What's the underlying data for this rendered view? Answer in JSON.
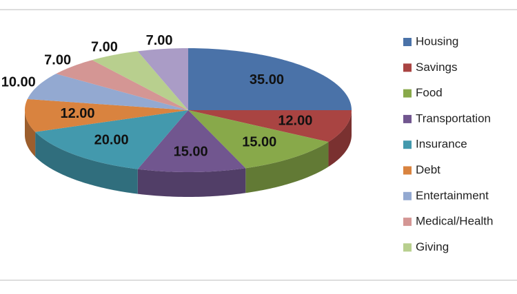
{
  "chart_data": {
    "type": "pie",
    "categories": [
      "Housing",
      "Savings",
      "Food",
      "Transportation",
      "Insurance",
      "Debt",
      "Entertainment",
      "Medical/Health",
      "Giving",
      null
    ],
    "values": [
      35,
      12,
      15,
      15,
      20,
      12,
      10,
      7,
      7,
      7
    ],
    "value_labels": [
      "35.00",
      "12.00",
      "15.00",
      "15.00",
      "20.00",
      "12.00",
      "10.00",
      "7.00",
      "7.00",
      "7.00"
    ],
    "colors": [
      "#4a72a8",
      "#a94442",
      "#88a94a",
      "#71568f",
      "#4399ad",
      "#d9833f",
      "#93a9d1",
      "#d49694",
      "#b8cf8e",
      "#aa9cc6"
    ],
    "legend": "right"
  }
}
